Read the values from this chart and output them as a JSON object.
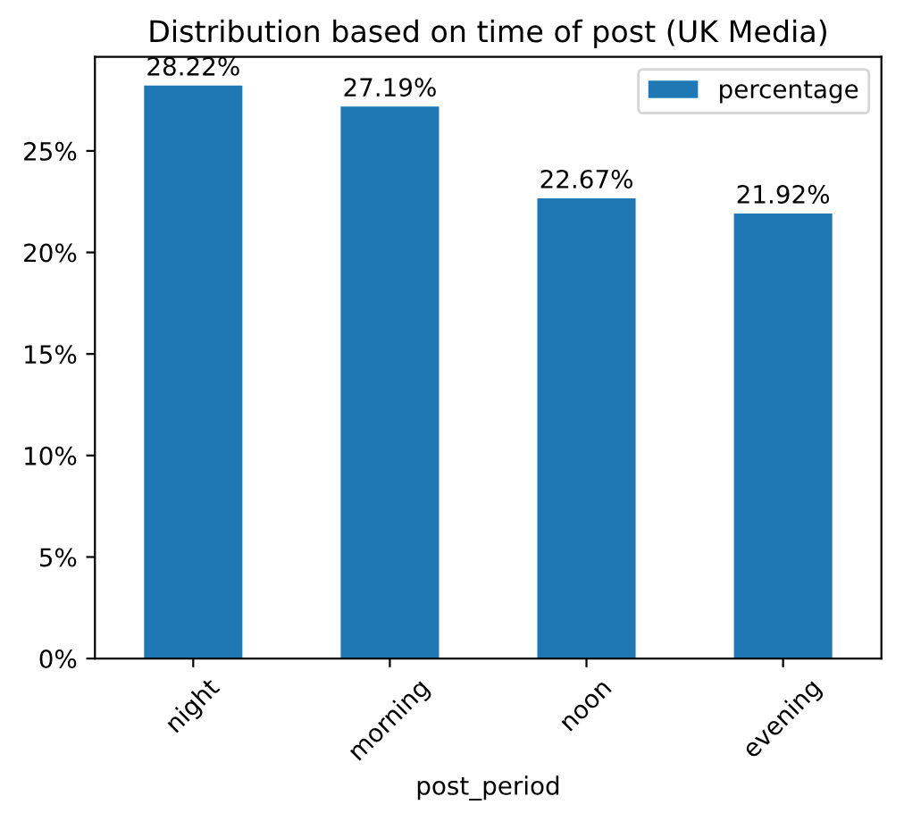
{
  "chart_data": {
    "type": "bar",
    "title": "Distribution based on time of post (UK Media)",
    "xlabel": "post_period",
    "categories": [
      "night",
      "morning",
      "noon",
      "evening"
    ],
    "series": [
      {
        "name": "percentage",
        "color": "#1f77b4",
        "values": [
          28.22,
          27.19,
          22.67,
          21.92
        ]
      }
    ],
    "value_labels": [
      "28.22%",
      "27.19%",
      "22.67%",
      "21.92%"
    ],
    "ylim": [
      0,
      29.63
    ],
    "yticks": [
      {
        "value": 0,
        "label": "0%"
      },
      {
        "value": 5,
        "label": "5%"
      },
      {
        "value": 10,
        "label": "10%"
      },
      {
        "value": 15,
        "label": "15%"
      },
      {
        "value": 20,
        "label": "20%"
      },
      {
        "value": 25,
        "label": "25%"
      }
    ],
    "legend": "top right",
    "grid": false
  }
}
